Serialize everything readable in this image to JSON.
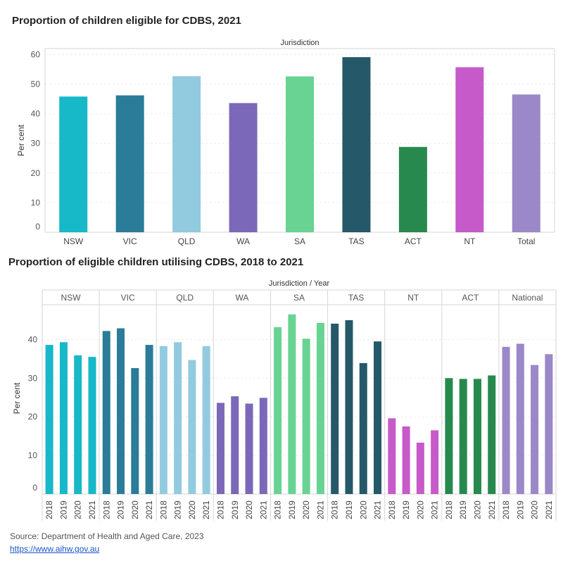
{
  "chart_data": [
    {
      "type": "bar",
      "title": "Proportion of children eligible for CDBS, 2021",
      "header": "Jurisdiction",
      "ylabel": "Per cent",
      "ylim": [
        0,
        62
      ],
      "yticks": [
        0,
        10,
        20,
        30,
        40,
        50,
        60
      ],
      "categories": [
        "NSW",
        "VIC",
        "QLD",
        "WA",
        "SA",
        "TAS",
        "ACT",
        "NT",
        "Total"
      ],
      "values": [
        45.8,
        46.2,
        52.7,
        43.6,
        52.6,
        59.1,
        28.8,
        55.7,
        46.5
      ],
      "colors": [
        "#17b8c8",
        "#2a7c98",
        "#92cbdf",
        "#7b68b8",
        "#68d392",
        "#255869",
        "#27894e",
        "#c65ac9",
        "#9a88c8"
      ]
    },
    {
      "type": "bar",
      "title": "Proportion of eligible children utilising CDBS, 2018 to 2021",
      "header": "Jurisdiction  /  Year",
      "ylabel": "Per cent",
      "ylim": [
        0,
        49
      ],
      "yticks": [
        0,
        10,
        20,
        30,
        40
      ],
      "years": [
        "2018",
        "2019",
        "2020",
        "2021"
      ],
      "series": [
        {
          "name": "NSW",
          "color": "#17b8c8",
          "values": [
            38.6,
            39.3,
            35.9,
            35.5
          ]
        },
        {
          "name": "VIC",
          "color": "#2a7c98",
          "values": [
            42.2,
            42.9,
            32.6,
            38.6
          ]
        },
        {
          "name": "QLD",
          "color": "#92cbdf",
          "values": [
            38.3,
            39.3,
            34.7,
            38.3
          ]
        },
        {
          "name": "WA",
          "color": "#7b68b8",
          "values": [
            23.6,
            25.3,
            23.4,
            24.9
          ]
        },
        {
          "name": "SA",
          "color": "#68d392",
          "values": [
            43.2,
            46.5,
            40.2,
            44.3
          ]
        },
        {
          "name": "TAS",
          "color": "#255869",
          "values": [
            44.1,
            45.0,
            33.9,
            39.5
          ]
        },
        {
          "name": "NT",
          "color": "#c65ac9",
          "values": [
            19.6,
            17.5,
            13.3,
            16.5
          ]
        },
        {
          "name": "ACT",
          "color": "#27894e",
          "values": [
            30.0,
            29.8,
            29.8,
            30.7
          ]
        },
        {
          "name": "National",
          "color": "#9a88c8",
          "values": [
            38.1,
            38.9,
            33.4,
            36.2
          ]
        }
      ]
    }
  ],
  "footer": {
    "source": "Source: Department of Health and Aged Care, 2023",
    "link": "https://www.aihw.gov.au"
  }
}
